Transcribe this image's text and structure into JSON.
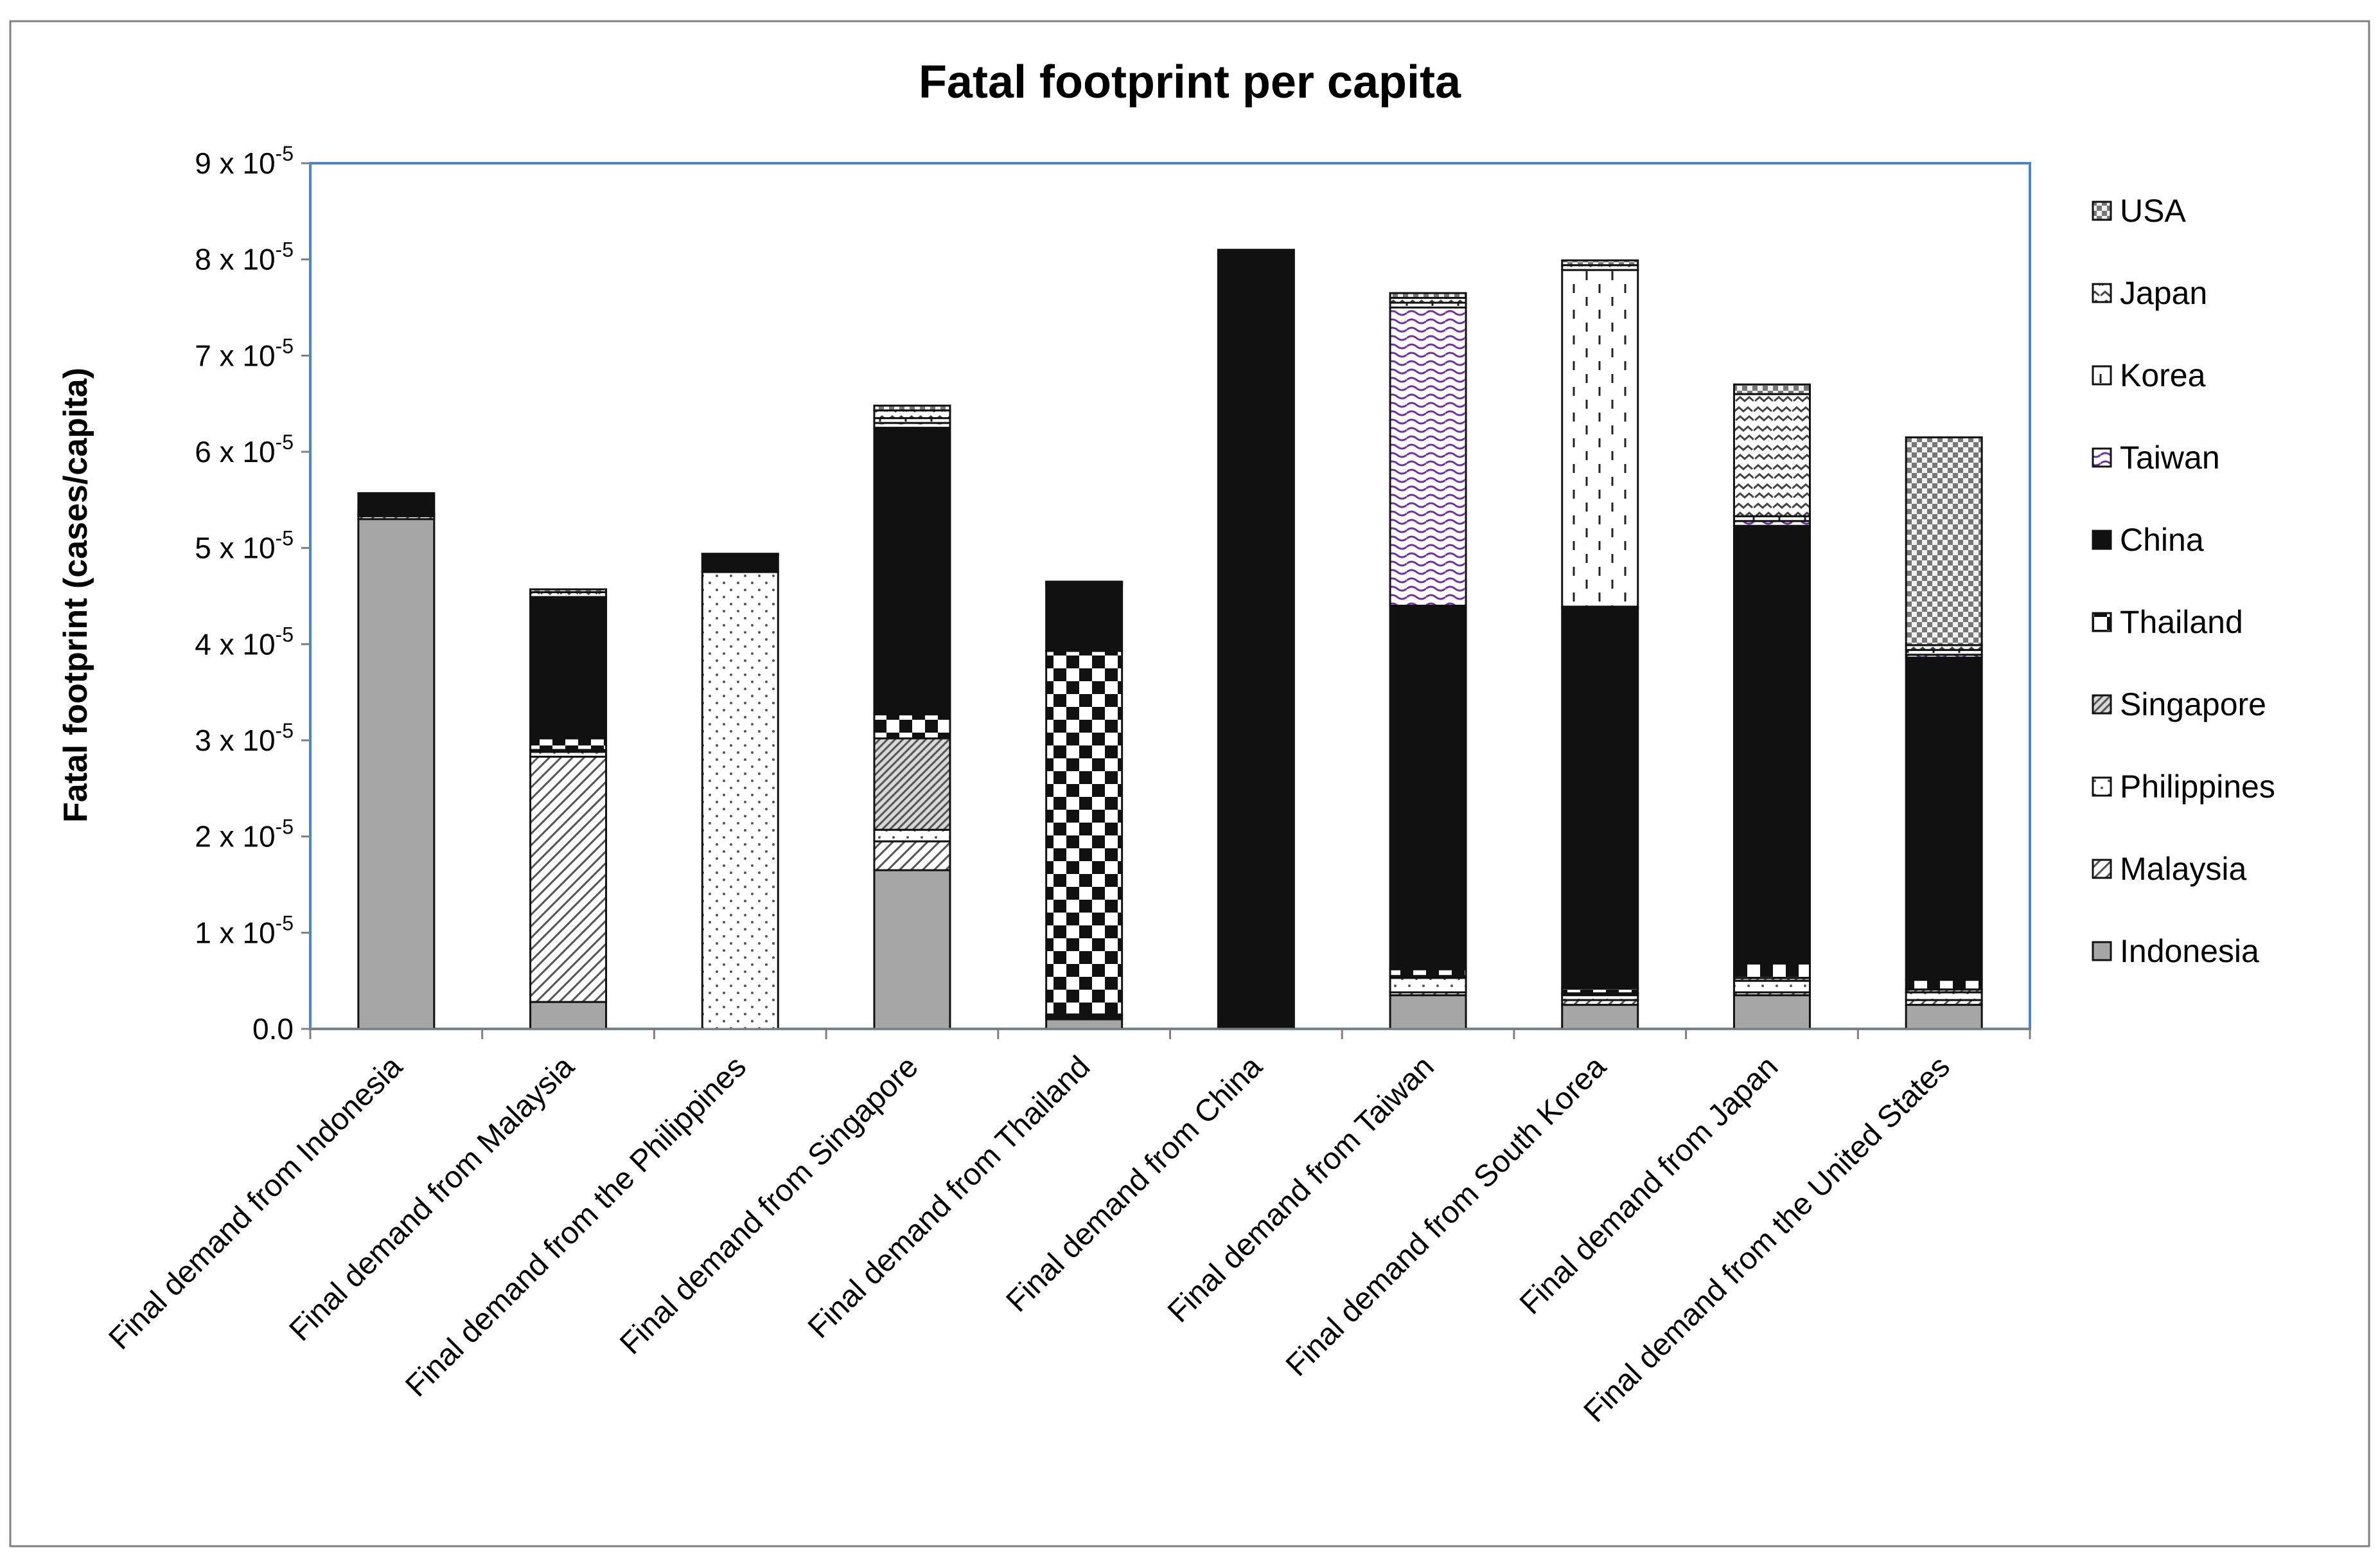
{
  "chart_data": {
    "type": "bar",
    "stacked": true,
    "title": "Fatal footprint per capita",
    "xlabel": "",
    "ylabel": "Fatal footprint (cases/capita)",
    "ylim": [
      0,
      9
    ],
    "y_unit_exponent": -5,
    "y_tick_labels": [
      {
        "value": 0,
        "text": "0.0",
        "exp": ""
      },
      {
        "value": 1,
        "text": "1 x 10",
        "exp": "-5"
      },
      {
        "value": 2,
        "text": "2 x 10",
        "exp": "-5"
      },
      {
        "value": 3,
        "text": "3 x 10",
        "exp": "-5"
      },
      {
        "value": 4,
        "text": "4 x 10",
        "exp": "-5"
      },
      {
        "value": 5,
        "text": "5 x 10",
        "exp": "-5"
      },
      {
        "value": 6,
        "text": "6 x 10",
        "exp": "-5"
      },
      {
        "value": 7,
        "text": "7 x 10",
        "exp": "-5"
      },
      {
        "value": 8,
        "text": "8 x 10",
        "exp": "-5"
      },
      {
        "value": 9,
        "text": "9 x 10",
        "exp": "-5"
      }
    ],
    "categories": [
      "Final demand from Indonesia",
      "Final demand from Malaysia",
      "Final demand from the Philippines",
      "Final demand from Singapore",
      "Final demand from Thailand",
      "Final demand from China",
      "Final demand from Taiwan",
      "Final demand from South Korea",
      "Final demand from Japan",
      "Final demand from the United States"
    ],
    "legend_position": "right",
    "series": [
      {
        "name": "Indonesia",
        "pattern": "solid-gray",
        "values": [
          5.3,
          0.28,
          0.0,
          1.65,
          0.1,
          0.0,
          0.35,
          0.25,
          0.35,
          0.25
        ]
      },
      {
        "name": "Malaysia",
        "pattern": "diagonal",
        "values": [
          0.03,
          2.55,
          0.0,
          0.3,
          0.02,
          0.0,
          0.03,
          0.05,
          0.03,
          0.05
        ]
      },
      {
        "name": "Philippines",
        "pattern": "dots",
        "values": [
          0.01,
          0.05,
          4.75,
          0.12,
          0.02,
          0.0,
          0.15,
          0.05,
          0.12,
          0.08
        ]
      },
      {
        "name": "Singapore",
        "pattern": "diagonal-dense",
        "values": [
          0.01,
          0.02,
          0.0,
          0.95,
          0.01,
          0.0,
          0.02,
          0.02,
          0.03,
          0.03
        ]
      },
      {
        "name": "Thailand",
        "pattern": "checker",
        "values": [
          0.02,
          0.12,
          0.0,
          0.25,
          3.78,
          0.0,
          0.07,
          0.05,
          0.15,
          0.1
        ]
      },
      {
        "name": "China",
        "pattern": "solid-black",
        "values": [
          0.2,
          1.45,
          0.18,
          2.98,
          0.68,
          8.1,
          3.78,
          3.95,
          4.55,
          3.35
        ]
      },
      {
        "name": "Taiwan",
        "pattern": "wave-purple",
        "values": [
          0.0,
          0.0,
          0.0,
          0.05,
          0.0,
          0.0,
          3.1,
          0.02,
          0.05,
          0.03
        ]
      },
      {
        "name": "Korea",
        "pattern": "dashes",
        "values": [
          0.0,
          0.02,
          0.0,
          0.05,
          0.01,
          0.0,
          0.05,
          3.5,
          0.05,
          0.05
        ]
      },
      {
        "name": "Japan",
        "pattern": "zigzag",
        "values": [
          0.0,
          0.05,
          0.01,
          0.08,
          0.02,
          0.0,
          0.05,
          0.05,
          1.27,
          0.05
        ]
      },
      {
        "name": "USA",
        "pattern": "small-checker",
        "values": [
          0.0,
          0.03,
          0.0,
          0.05,
          0.01,
          0.0,
          0.05,
          0.05,
          0.1,
          2.16
        ]
      }
    ]
  }
}
